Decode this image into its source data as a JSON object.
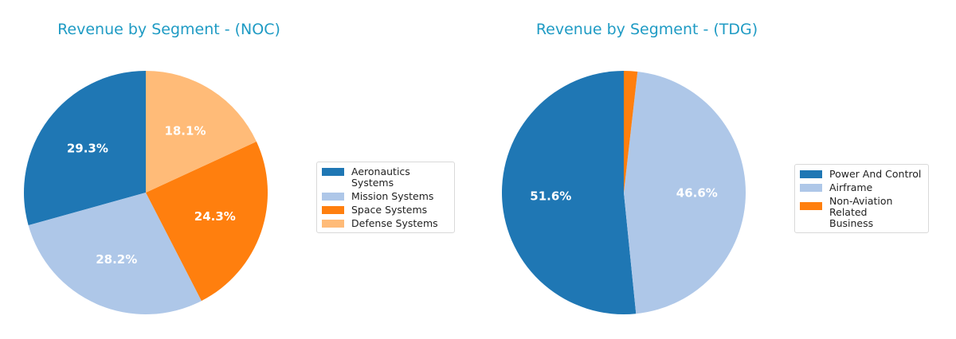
{
  "chart_data": [
    {
      "type": "pie",
      "title": "Revenue by Segment - (NOC)",
      "categories": [
        "Aeronautics Systems",
        "Mission Systems",
        "Space Systems",
        "Defense Systems"
      ],
      "values": [
        29.3,
        28.2,
        24.3,
        18.1
      ],
      "labels": [
        "29.3%",
        "28.2%",
        "24.3%",
        "18.1%"
      ],
      "colors": [
        "#1f77b4",
        "#aec7e8",
        "#ff7f0e",
        "#ffbb78"
      ],
      "start_angle": 90,
      "direction": "counterclockwise",
      "legend_position": "right"
    },
    {
      "type": "pie",
      "title": "Revenue by Segment - (TDG)",
      "categories": [
        "Power And Control",
        "Airframe",
        "Non-Aviation Related Business"
      ],
      "values": [
        51.6,
        46.6,
        1.8
      ],
      "labels": [
        "51.6%",
        "46.6%",
        ""
      ],
      "colors": [
        "#1f77b4",
        "#aec7e8",
        "#ff7f0e"
      ],
      "start_angle": 90,
      "direction": "counterclockwise",
      "legend_position": "right"
    }
  ],
  "legends": [
    {
      "items": [
        "Aeronautics Systems",
        "Mission Systems",
        "Space Systems",
        "Defense Systems"
      ]
    },
    {
      "items": [
        "Power And Control",
        "Airframe",
        "Non-Aviation Related\nBusiness"
      ]
    }
  ]
}
